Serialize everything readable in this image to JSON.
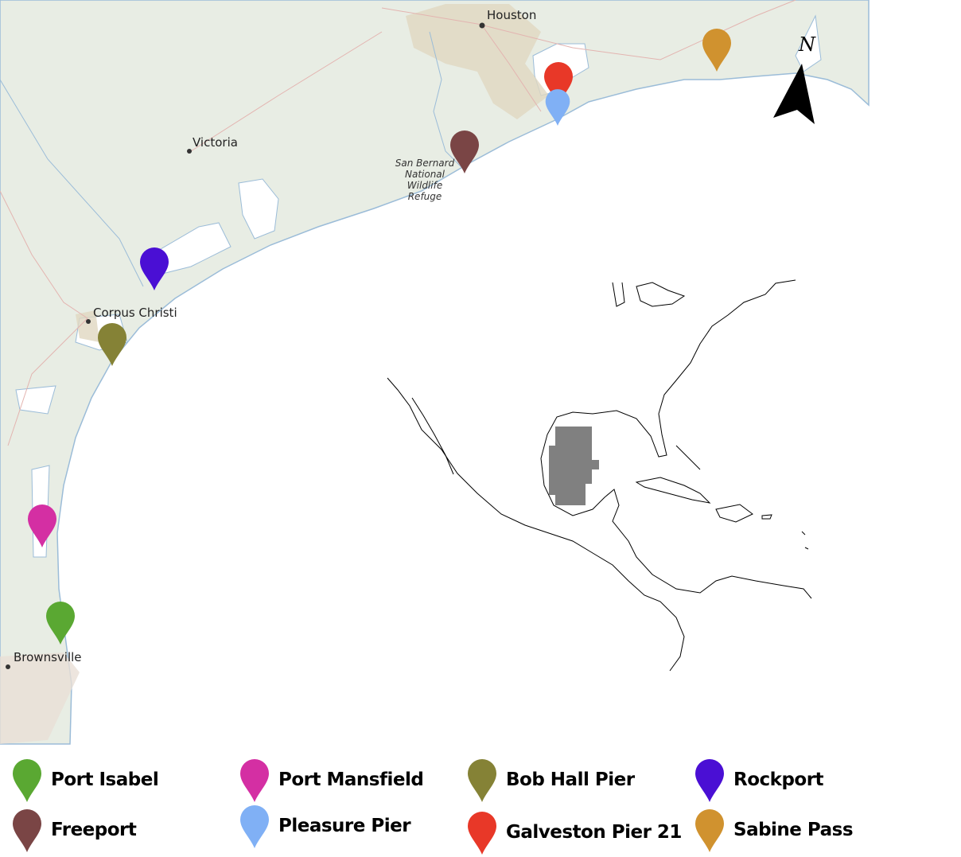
{
  "cities": {
    "houston": "Houston",
    "victoria": "Victoria",
    "corpus_christi": "Corpus Christi",
    "brownsville": "Brownsville"
  },
  "refuge_label": [
    "San Bernard",
    "National",
    "Wildlife",
    "Refuge"
  ],
  "north_label": "N",
  "stations": [
    {
      "name": "Port Isabel",
      "color": "#5aa832"
    },
    {
      "name": "Port Mansfield",
      "color": "#d42fa3"
    },
    {
      "name": "Bob Hall Pier",
      "color": "#858236"
    },
    {
      "name": "Rockport",
      "color": "#4a0fd4"
    },
    {
      "name": "Freeport",
      "color": "#7a4545"
    },
    {
      "name": "Pleasure Pier",
      "color": "#80b0f5"
    },
    {
      "name": "Galveston Pier 21",
      "color": "#e83828"
    },
    {
      "name": "Sabine Pass",
      "color": "#d0922f"
    }
  ],
  "colors": {
    "land": "#e8ede4",
    "water": "#ffffff",
    "coastline": "#9bbcd8",
    "urban": "#e0d7c0",
    "roads": "#e3b4b0",
    "inset_region": "#808080"
  }
}
